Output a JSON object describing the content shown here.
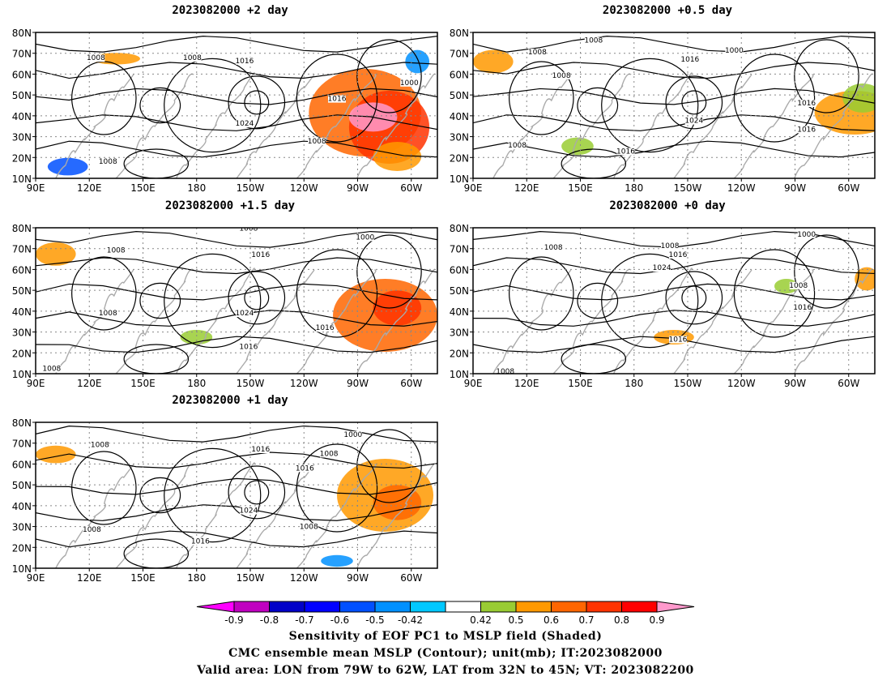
{
  "panels": [
    {
      "id": "p2",
      "title": "2023082000 +2 day",
      "contour_labels": [
        "1008",
        "1008",
        "1016",
        "1000",
        "1016",
        "1024",
        "1008",
        "1008"
      ]
    },
    {
      "id": "p05",
      "title": "2023082000 +0.5 day",
      "contour_labels": [
        "1008",
        "1008",
        "1008",
        "1016",
        "1000",
        "1024",
        "1016",
        "1016",
        "1016",
        "1008"
      ]
    },
    {
      "id": "p15",
      "title": "2023082000 +1.5 day",
      "contour_labels": [
        "1008",
        "1008",
        "1016",
        "1000",
        "1008",
        "1024",
        "1016",
        "1016",
        "1008"
      ]
    },
    {
      "id": "p0",
      "title": "2023082000 +0 day",
      "contour_labels": [
        "1008",
        "1008",
        "1016",
        "1024",
        "1000",
        "1008",
        "1016",
        "1016",
        "1008"
      ]
    },
    {
      "id": "p1",
      "title": "2023082000 +1 day",
      "contour_labels": [
        "1008",
        "1016",
        "1008",
        "1000",
        "1016",
        "1024",
        "1008",
        "1016",
        "1008"
      ]
    }
  ],
  "axes": {
    "lat_labels": [
      "80N",
      "70N",
      "60N",
      "50N",
      "40N",
      "30N",
      "20N",
      "10N"
    ],
    "lon_labels": [
      "90E",
      "120E",
      "150E",
      "180",
      "150W",
      "120W",
      "90W",
      "60W"
    ]
  },
  "colorbar": {
    "ticks": [
      "-0.9",
      "-0.8",
      "-0.7",
      "-0.6",
      "-0.5",
      "-0.42",
      "0.42",
      "0.5",
      "0.6",
      "0.7",
      "0.8",
      "0.9"
    ],
    "colors": [
      "#ff00ff",
      "#c000c0",
      "#0000c8",
      "#0000ff",
      "#0050ff",
      "#0090ff",
      "#00c8ff",
      "#ffffff",
      "#99cc33",
      "#ff9900",
      "#ff6600",
      "#ff3300",
      "#ff0000",
      "#ff99cc"
    ]
  },
  "footer": {
    "line1": "Sensitivity of EOF PC1 to MSLP field (Shaded)",
    "line2": "CMC ensemble mean MSLP (Contour); unit(mb); IT:2023082000",
    "line3": "Valid area: LON from 79W to 62W, LAT from 32N to 45N; VT: 2023082200"
  }
}
